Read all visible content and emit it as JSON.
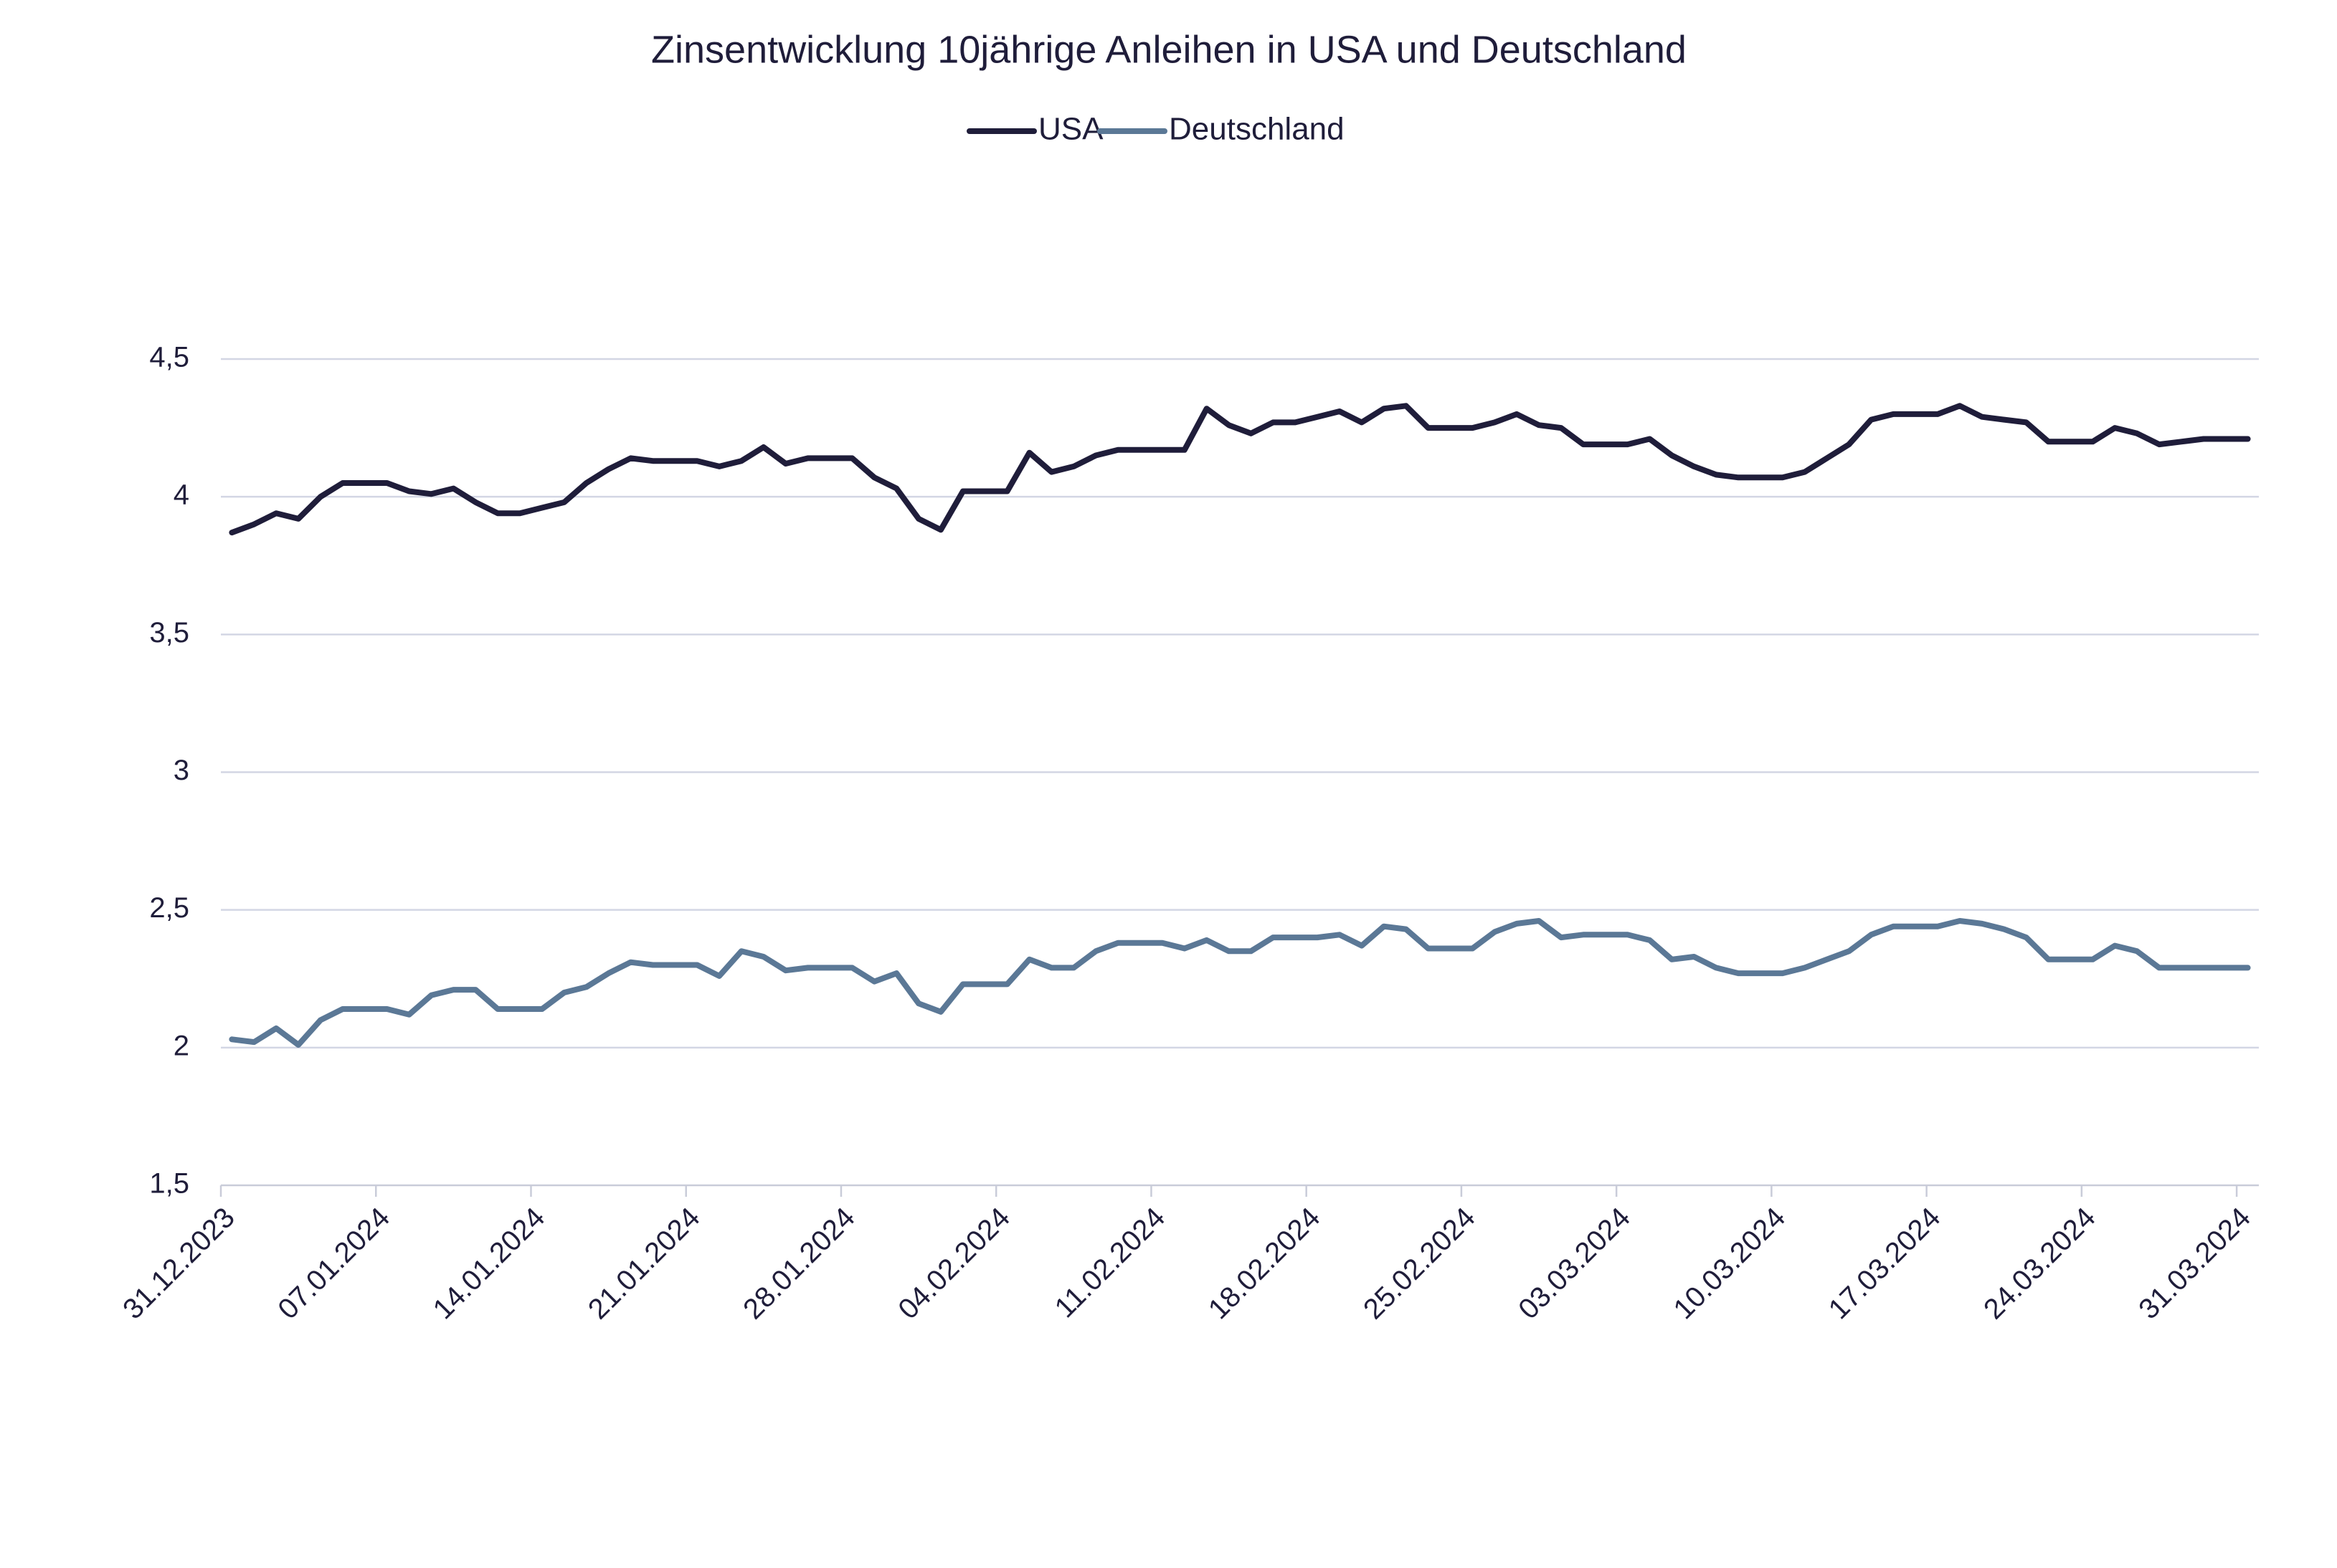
{
  "chart_data": {
    "type": "line",
    "title": "Zinsentwicklung 10jährige Anleihen in USA und Deutschland",
    "x": [
      "31.12.2023",
      "01.01.2024",
      "02.01.2024",
      "03.01.2024",
      "04.01.2024",
      "05.01.2024",
      "06.01.2024",
      "07.01.2024",
      "08.01.2024",
      "09.01.2024",
      "10.01.2024",
      "11.01.2024",
      "12.01.2024",
      "13.01.2024",
      "14.01.2024",
      "15.01.2024",
      "16.01.2024",
      "17.01.2024",
      "18.01.2024",
      "19.01.2024",
      "20.01.2024",
      "21.01.2024",
      "22.01.2024",
      "23.01.2024",
      "24.01.2024",
      "25.01.2024",
      "26.01.2024",
      "27.01.2024",
      "28.01.2024",
      "29.01.2024",
      "30.01.2024",
      "31.01.2024",
      "01.02.2024",
      "02.02.2024",
      "03.02.2024",
      "04.02.2024",
      "05.02.2024",
      "06.02.2024",
      "07.02.2024",
      "08.02.2024",
      "09.02.2024",
      "10.02.2024",
      "11.02.2024",
      "12.02.2024",
      "13.02.2024",
      "14.02.2024",
      "15.02.2024",
      "16.02.2024",
      "17.02.2024",
      "18.02.2024",
      "19.02.2024",
      "20.02.2024",
      "21.02.2024",
      "22.02.2024",
      "23.02.2024",
      "24.02.2024",
      "25.02.2024",
      "26.02.2024",
      "27.02.2024",
      "28.02.2024",
      "29.02.2024",
      "01.03.2024",
      "02.03.2024",
      "03.03.2024",
      "04.03.2024",
      "05.03.2024",
      "06.03.2024",
      "07.03.2024",
      "08.03.2024",
      "09.03.2024",
      "10.03.2024",
      "11.03.2024",
      "12.03.2024",
      "13.03.2024",
      "14.03.2024",
      "15.03.2024",
      "16.03.2024",
      "17.03.2024",
      "18.03.2024",
      "19.03.2024",
      "20.03.2024",
      "21.03.2024",
      "22.03.2024",
      "23.03.2024",
      "24.03.2024",
      "25.03.2024",
      "26.03.2024",
      "27.03.2024",
      "28.03.2024",
      "29.03.2024",
      "30.03.2024",
      "31.03.2024"
    ],
    "xticks": [
      "31.12.2023",
      "07.01.2024",
      "14.01.2024",
      "21.01.2024",
      "28.01.2024",
      "04.02.2024",
      "11.02.2024",
      "18.02.2024",
      "25.02.2024",
      "03.03.2024",
      "10.03.2024",
      "17.03.2024",
      "24.03.2024",
      "31.03.2024"
    ],
    "series": [
      {
        "name": "USA",
        "color": "#1f1d3a",
        "values": [
          3.87,
          3.9,
          3.94,
          3.92,
          4.0,
          4.05,
          4.05,
          4.05,
          4.02,
          4.01,
          4.03,
          3.98,
          3.94,
          3.94,
          3.96,
          3.98,
          4.05,
          4.1,
          4.14,
          4.13,
          4.13,
          4.13,
          4.11,
          4.13,
          4.18,
          4.12,
          4.14,
          4.14,
          4.14,
          4.07,
          4.03,
          3.92,
          3.88,
          4.02,
          4.02,
          4.02,
          4.16,
          4.09,
          4.11,
          4.15,
          4.17,
          4.17,
          4.17,
          4.17,
          4.32,
          4.26,
          4.23,
          4.27,
          4.27,
          4.29,
          4.31,
          4.27,
          4.32,
          4.33,
          4.25,
          4.25,
          4.25,
          4.27,
          4.3,
          4.26,
          4.25,
          4.19,
          4.19,
          4.19,
          4.21,
          4.15,
          4.11,
          4.08,
          4.07,
          4.07,
          4.07,
          4.09,
          4.14,
          4.19,
          4.28,
          4.3,
          4.3,
          4.3,
          4.33,
          4.29,
          4.28,
          4.27,
          4.2,
          4.2,
          4.2,
          4.25,
          4.23,
          4.19,
          4.2,
          4.21,
          4.21,
          4.21
        ]
      },
      {
        "name": "Deutschland",
        "color": "#5b7896",
        "values": [
          2.03,
          2.02,
          2.07,
          2.01,
          2.1,
          2.14,
          2.14,
          2.14,
          2.12,
          2.19,
          2.21,
          2.21,
          2.14,
          2.14,
          2.14,
          2.2,
          2.22,
          2.27,
          2.31,
          2.3,
          2.3,
          2.3,
          2.26,
          2.35,
          2.33,
          2.28,
          2.29,
          2.29,
          2.29,
          2.24,
          2.27,
          2.16,
          2.13,
          2.23,
          2.23,
          2.23,
          2.32,
          2.29,
          2.29,
          2.35,
          2.38,
          2.38,
          2.38,
          2.36,
          2.39,
          2.35,
          2.35,
          2.4,
          2.4,
          2.4,
          2.41,
          2.37,
          2.44,
          2.43,
          2.36,
          2.36,
          2.36,
          2.42,
          2.45,
          2.46,
          2.4,
          2.41,
          2.41,
          2.41,
          2.39,
          2.32,
          2.33,
          2.29,
          2.27,
          2.27,
          2.27,
          2.29,
          2.32,
          2.35,
          2.41,
          2.44,
          2.44,
          2.44,
          2.46,
          2.45,
          2.43,
          2.4,
          2.32,
          2.32,
          2.32,
          2.37,
          2.35,
          2.29,
          2.29,
          2.29,
          2.29,
          2.29
        ]
      }
    ],
    "ylim": [
      1.5,
      4.5
    ],
    "yticks": [
      {
        "value": 1.5,
        "label": "1,5"
      },
      2,
      {
        "value": 2.5,
        "label": "2,5"
      },
      3,
      {
        "value": 3.5,
        "label": "3,5"
      },
      4,
      {
        "value": 4.5,
        "label": "4,5"
      }
    ],
    "grid": true
  }
}
